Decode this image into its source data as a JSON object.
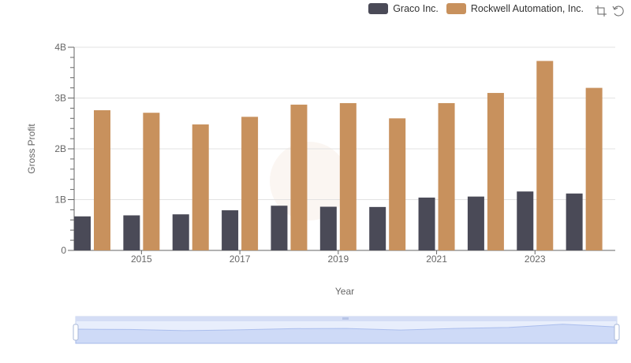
{
  "legend": {
    "items": [
      {
        "label": "Graco Inc.",
        "color": "#4a4a57"
      },
      {
        "label": "Rockwell Automation, Inc.",
        "color": "#c8915d"
      }
    ]
  },
  "toolbox": {
    "icons": [
      "zoom-icon",
      "restore-icon"
    ]
  },
  "chart_data": {
    "type": "bar",
    "xlabel": "Year",
    "ylabel": "Gross Profit",
    "categories": [
      "2014",
      "2015",
      "2016",
      "2017",
      "2018",
      "2019",
      "2020",
      "2021",
      "2022",
      "2023",
      "2024"
    ],
    "x_tick_labels": [
      "2015",
      "2017",
      "2019",
      "2021",
      "2023"
    ],
    "y_tick_labels": [
      "0",
      "1B",
      "2B",
      "3B",
      "4B"
    ],
    "ylim": [
      0,
      4000000000
    ],
    "legend_position": "top-right",
    "grid": true,
    "series": [
      {
        "name": "Graco Inc.",
        "color": "#4a4a57",
        "values": [
          670000000,
          690000000,
          710000000,
          790000000,
          880000000,
          860000000,
          855000000,
          1040000000,
          1060000000,
          1160000000,
          1120000000
        ]
      },
      {
        "name": "Rockwell Automation, Inc.",
        "color": "#c8915d",
        "values": [
          2760000000,
          2710000000,
          2480000000,
          2630000000,
          2870000000,
          2900000000,
          2600000000,
          2900000000,
          3100000000,
          3730000000,
          3200000000
        ]
      }
    ]
  }
}
